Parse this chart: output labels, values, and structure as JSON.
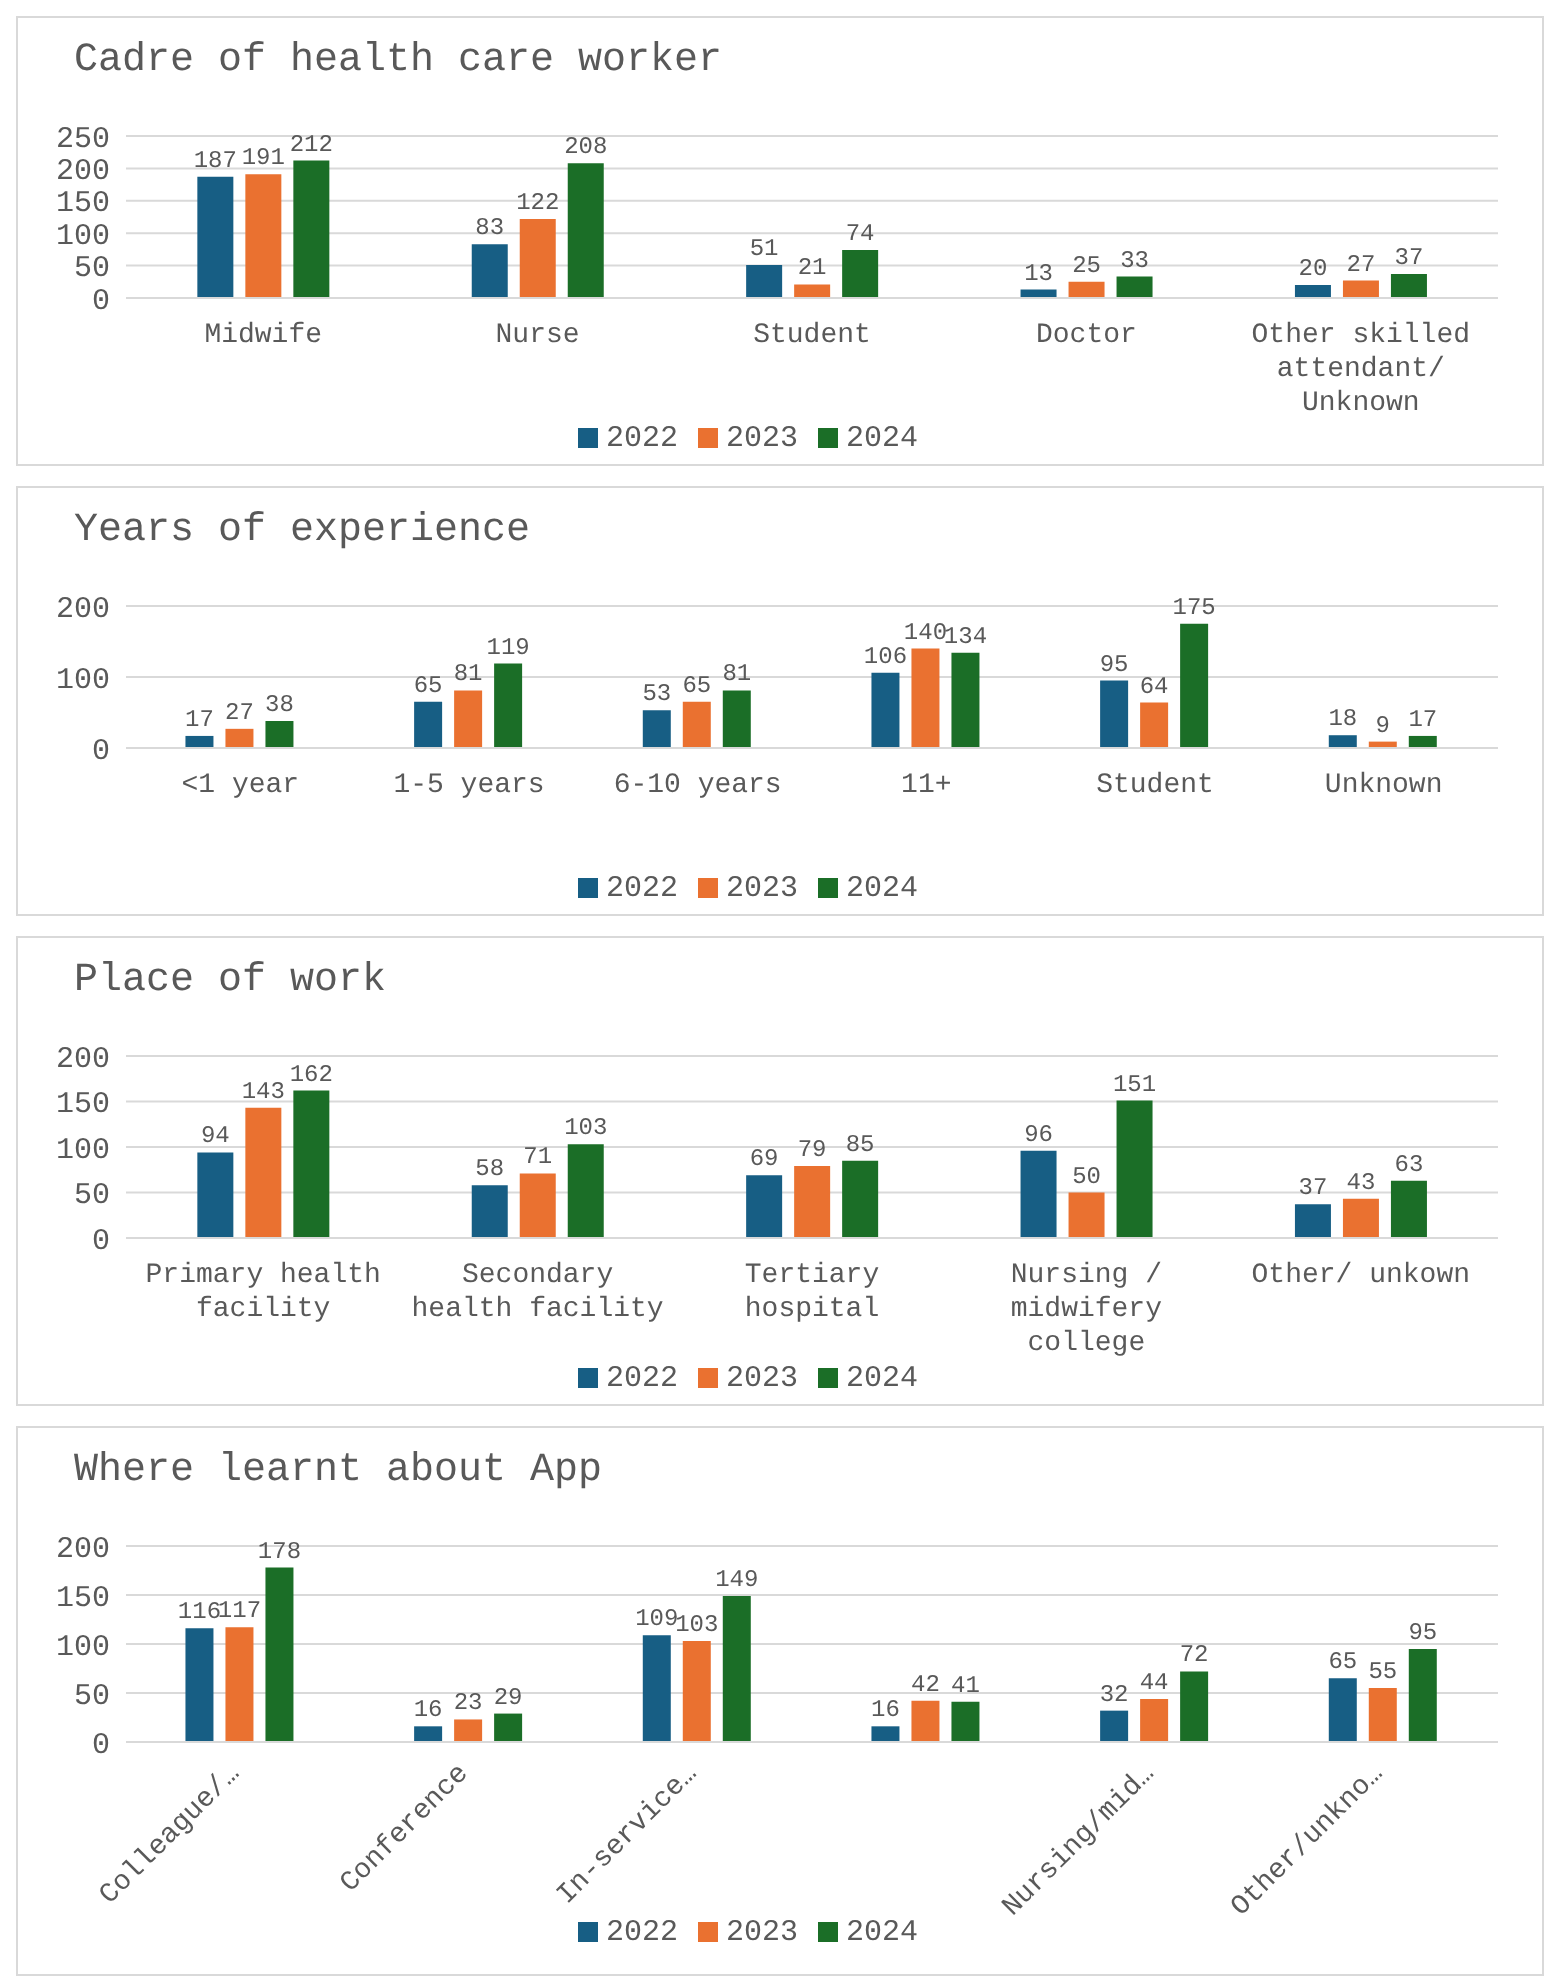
{
  "chart_data": [
    {
      "type": "bar",
      "title": "Cadre of health care worker",
      "categories": [
        "Midwife",
        "Nurse",
        "Student",
        "Doctor",
        "Other skilled attendant/ Unknown"
      ],
      "ylim": [
        0,
        250
      ],
      "yticks": [
        0,
        50,
        100,
        150,
        200,
        250
      ],
      "grid": "y",
      "legend": "bottom",
      "data_labels": true,
      "series": [
        {
          "name": "2022",
          "color": "#175e84",
          "values": [
            187,
            83,
            51,
            13,
            20
          ]
        },
        {
          "name": "2023",
          "color": "#ea7130",
          "values": [
            191,
            122,
            21,
            25,
            27
          ]
        },
        {
          "name": "2024",
          "color": "#1b6e27",
          "values": [
            212,
            208,
            74,
            33,
            37
          ]
        }
      ]
    },
    {
      "type": "bar",
      "title": "Years of experience",
      "categories": [
        "<1 year",
        "1-5 years",
        "6-10 years",
        "11+",
        "Student",
        "Unknown"
      ],
      "ylim": [
        0,
        200
      ],
      "yticks": [
        0,
        100,
        200
      ],
      "grid": "y",
      "legend": "bottom",
      "data_labels": true,
      "series": [
        {
          "name": "2022",
          "color": "#175e84",
          "values": [
            17,
            65,
            53,
            106,
            95,
            18
          ]
        },
        {
          "name": "2023",
          "color": "#ea7130",
          "values": [
            27,
            81,
            65,
            140,
            64,
            9
          ]
        },
        {
          "name": "2024",
          "color": "#1b6e27",
          "values": [
            38,
            119,
            81,
            134,
            175,
            17
          ]
        }
      ]
    },
    {
      "type": "bar",
      "title": "Place of work",
      "categories": [
        "Primary health facility",
        "Secondary health facility",
        "Tertiary hospital",
        "Nursing / midwifery college",
        "Other/ unkown"
      ],
      "ylim": [
        0,
        200
      ],
      "yticks": [
        0,
        50,
        100,
        150,
        200
      ],
      "grid": "y",
      "legend": "bottom",
      "data_labels": true,
      "series": [
        {
          "name": "2022",
          "color": "#175e84",
          "values": [
            94,
            58,
            69,
            96,
            37
          ]
        },
        {
          "name": "2023",
          "color": "#ea7130",
          "values": [
            143,
            71,
            79,
            50,
            43
          ]
        },
        {
          "name": "2024",
          "color": "#1b6e27",
          "values": [
            162,
            103,
            85,
            151,
            63
          ]
        }
      ]
    },
    {
      "type": "bar",
      "title": "Where learnt about App",
      "categories": [
        "Colleague/…",
        "Conference",
        "In-service…",
        null,
        "Nursing/mid…",
        "Other/unkno…"
      ],
      "ylim": [
        0,
        200
      ],
      "yticks": [
        0,
        50,
        100,
        150,
        200
      ],
      "grid": "y",
      "legend": "bottom",
      "data_labels": true,
      "series": [
        {
          "name": "2022",
          "color": "#175e84",
          "values": [
            116,
            16,
            109,
            16,
            32,
            65
          ]
        },
        {
          "name": "2023",
          "color": "#ea7130",
          "values": [
            117,
            23,
            103,
            42,
            44,
            55
          ]
        },
        {
          "name": "2024",
          "color": "#1b6e27",
          "values": [
            178,
            29,
            149,
            41,
            72,
            95
          ]
        }
      ]
    }
  ]
}
